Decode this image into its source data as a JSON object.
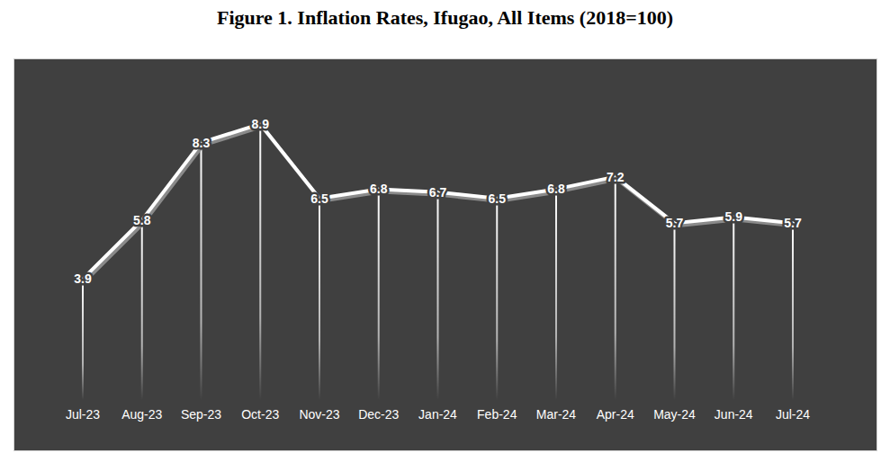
{
  "chart_data": {
    "type": "line",
    "title": "Figure 1. Inflation Rates, Ifugao, All Items (2018=100)",
    "categories": [
      "Jul-23",
      "Aug-23",
      "Sep-23",
      "Oct-23",
      "Nov-23",
      "Dec-23",
      "Jan-24",
      "Feb-24",
      "Mar-24",
      "Apr-24",
      "May-24",
      "Jun-24",
      "Jul-24"
    ],
    "values": [
      3.9,
      5.8,
      8.3,
      8.9,
      6.5,
      6.8,
      6.7,
      6.5,
      6.8,
      7.2,
      5.7,
      5.9,
      5.7
    ],
    "color": "#ffffff",
    "ylim": [
      0,
      10
    ],
    "grid": false,
    "data_labels": true,
    "tick_labels": "x"
  }
}
